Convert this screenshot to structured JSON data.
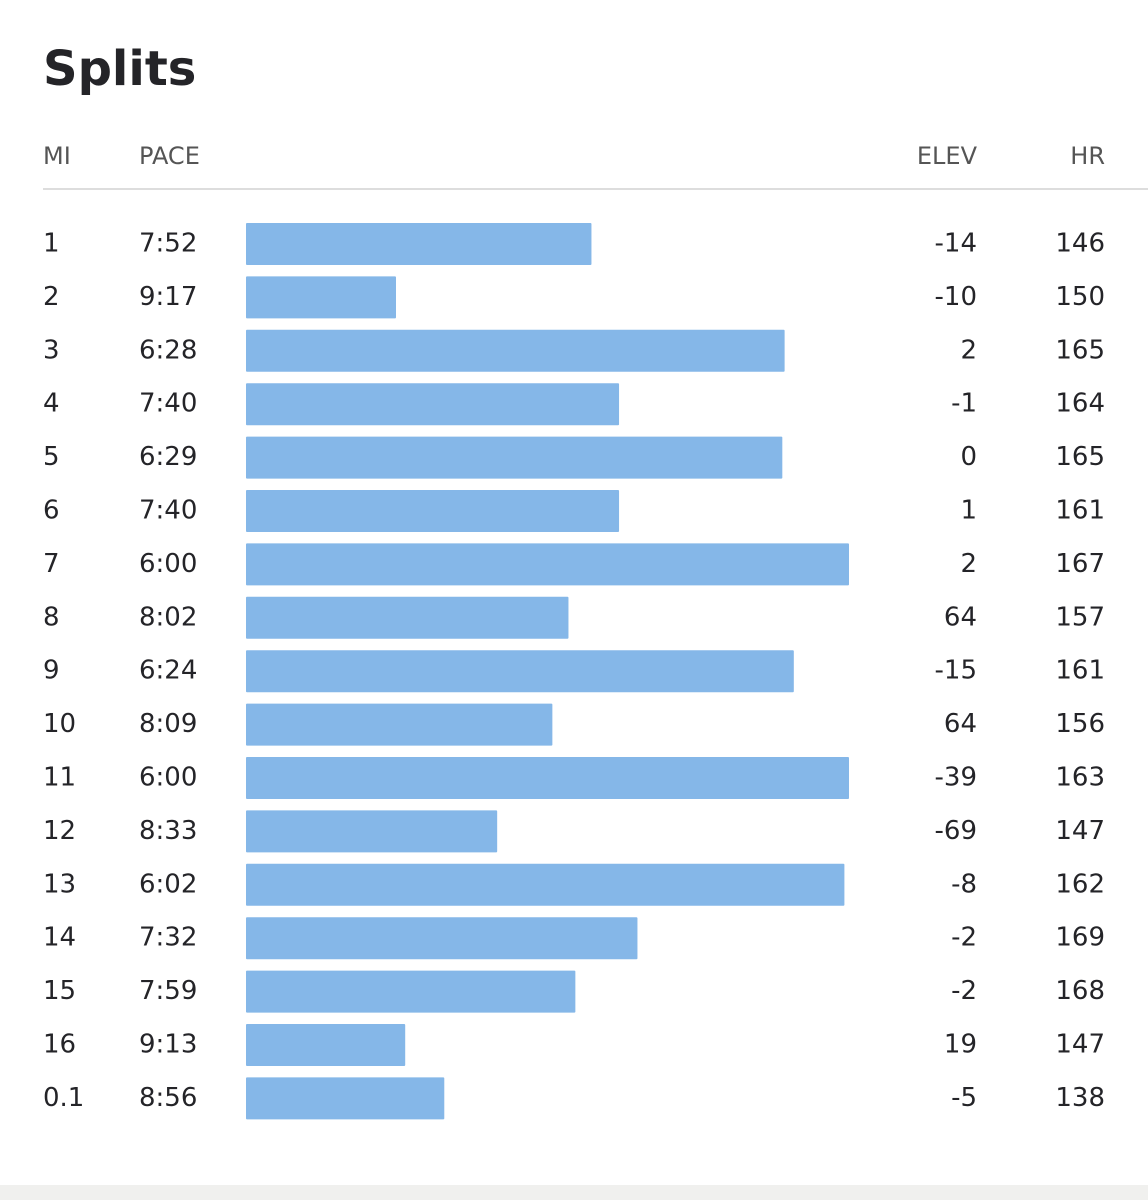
{
  "title": "Splits",
  "columns": {
    "mi": "MI",
    "pace": "PACE",
    "elev": "ELEV",
    "hr": "HR"
  },
  "rows": [
    {
      "mi": "1",
      "pace": "7:52",
      "elev": -14,
      "hr": 146
    },
    {
      "mi": "2",
      "pace": "9:17",
      "elev": -10,
      "hr": 150
    },
    {
      "mi": "3",
      "pace": "6:28",
      "elev": 2,
      "hr": 165
    },
    {
      "mi": "4",
      "pace": "7:40",
      "elev": -1,
      "hr": 164
    },
    {
      "mi": "5",
      "pace": "6:29",
      "elev": 0,
      "hr": 165
    },
    {
      "mi": "6",
      "pace": "7:40",
      "elev": 1,
      "hr": 161
    },
    {
      "mi": "7",
      "pace": "6:00",
      "elev": 2,
      "hr": 167
    },
    {
      "mi": "8",
      "pace": "8:02",
      "elev": 64,
      "hr": 157
    },
    {
      "mi": "9",
      "pace": "6:24",
      "elev": -15,
      "hr": 161
    },
    {
      "mi": "10",
      "pace": "8:09",
      "elev": 64,
      "hr": 156
    },
    {
      "mi": "11",
      "pace": "6:00",
      "elev": -39,
      "hr": 163
    },
    {
      "mi": "12",
      "pace": "8:33",
      "elev": -69,
      "hr": 147
    },
    {
      "mi": "13",
      "pace": "6:02",
      "elev": -8,
      "hr": 162
    },
    {
      "mi": "14",
      "pace": "7:32",
      "elev": -2,
      "hr": 169
    },
    {
      "mi": "15",
      "pace": "7:59",
      "elev": -2,
      "hr": 168
    },
    {
      "mi": "16",
      "pace": "9:13",
      "elev": 19,
      "hr": 147
    },
    {
      "mi": "0.1",
      "pace": "8:56",
      "elev": -5,
      "hr": 138
    }
  ]
}
